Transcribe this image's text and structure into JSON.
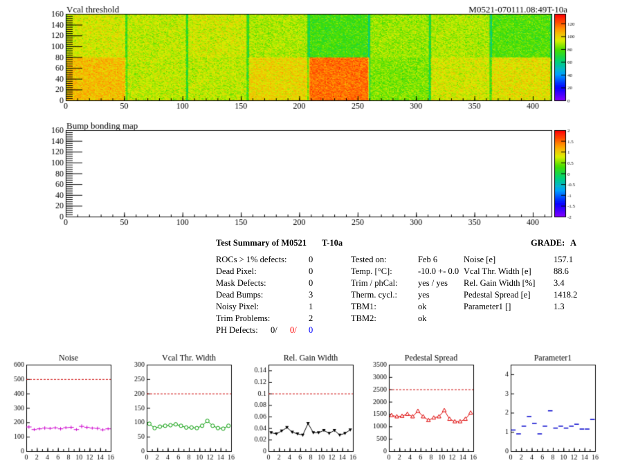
{
  "header": {
    "module_id": "M0521-070111.08:49T-10a"
  },
  "colors": {
    "noise": "#cc00cc",
    "vcal": "#009900",
    "gain": "#000000",
    "pedestal": "#dd0000",
    "param1": "#0000cc",
    "ref_line": "#cc0000",
    "ph_red": "#ff0000",
    "ph_blue": "#0000ff"
  },
  "summary": {
    "title": "Test Summary of M0521",
    "temp_tag": "T-10a",
    "grade_label": "GRADE:",
    "grade_value": "A",
    "left_rows": [
      {
        "label": "ROCs > 1% defects:",
        "value": "0"
      },
      {
        "label": "Dead Pixel:",
        "value": "0"
      },
      {
        "label": "Mask Defects:",
        "value": "0"
      },
      {
        "label": "Dead Bumps:",
        "value": "3"
      },
      {
        "label": "Noisy Pixel:",
        "value": "1"
      },
      {
        "label": "Trim Problems:",
        "value": "2"
      }
    ],
    "ph_defects": {
      "label": "PH Defects:",
      "v1": "0/",
      "v2": "0/",
      "v3": "0"
    },
    "mid_rows": [
      {
        "label": "Tested on:",
        "value": "Feb 6"
      },
      {
        "label": "Temp. [°C]:",
        "value": "-10.0 +- 0.0"
      },
      {
        "label": "Trim / phCal:",
        "value": "yes / yes"
      },
      {
        "label": "Therm. cycl.:",
        "value": "yes"
      },
      {
        "label": "TBM1:",
        "value": "ok"
      },
      {
        "label": "TBM2:",
        "value": "ok"
      }
    ],
    "right_rows": [
      {
        "label": "Noise [e]",
        "value": "157.1"
      },
      {
        "label": "Vcal Thr. Width [e]",
        "value": "88.6"
      },
      {
        "label": "Rel. Gain Width [%]",
        "value": "3.4"
      },
      {
        "label": "Pedestal Spread [e]",
        "value": "1418.2"
      },
      {
        "label": "Parameter1 []",
        "value": "1.3"
      }
    ]
  },
  "chart_data": [
    {
      "type": "heatmap",
      "title": "Vcal threshold",
      "xlim": [
        0,
        416
      ],
      "ylim": [
        0,
        160
      ],
      "xticks": [
        0,
        50,
        100,
        150,
        200,
        250,
        300,
        350,
        400
      ],
      "yticks": [
        0,
        20,
        40,
        60,
        80,
        100,
        120,
        140,
        160
      ],
      "zlim": [
        0,
        135
      ],
      "zticks": [
        0,
        20,
        40,
        60,
        80,
        100,
        120
      ],
      "roc_means": {
        "top": [
          95,
          92,
          94,
          90,
          78,
          88,
          90,
          80
        ],
        "bottom": [
          105,
          92,
          92,
          100,
          118,
          85,
          95,
          98
        ]
      }
    },
    {
      "type": "heatmap",
      "title": "Bump bonding map",
      "xlim": [
        0,
        416
      ],
      "ylim": [
        0,
        160
      ],
      "xticks": [
        0,
        50,
        100,
        150,
        200,
        250,
        300,
        350,
        400
      ],
      "yticks": [
        0,
        20,
        40,
        60,
        80,
        100,
        120,
        140,
        160
      ],
      "zlim": [
        -2,
        2
      ],
      "zticks": [
        -2,
        -1.5,
        -1,
        -0.5,
        0,
        0.5,
        1,
        1.5,
        2
      ],
      "zticklabels": [
        "-2",
        "-1.5",
        "-1",
        "-0.5",
        "0",
        "0.5",
        "1",
        "1.5",
        "2"
      ]
    },
    {
      "type": "scatter",
      "title": "Noise",
      "style": "cross",
      "x": [
        0,
        1,
        2,
        3,
        4,
        5,
        6,
        7,
        8,
        9,
        10,
        11,
        12,
        13,
        14,
        15
      ],
      "values": [
        168,
        150,
        155,
        160,
        158,
        162,
        155,
        163,
        165,
        150,
        172,
        165,
        160,
        158,
        148,
        155
      ],
      "errors": [
        12,
        10,
        10,
        12,
        10,
        10,
        12,
        10,
        12,
        10,
        14,
        12,
        10,
        12,
        10,
        10
      ],
      "xlim": [
        0,
        16
      ],
      "ylim": [
        0,
        600
      ],
      "xticks": [
        0,
        2,
        4,
        6,
        8,
        10,
        12,
        14,
        16
      ],
      "yticks": [
        0,
        100,
        200,
        300,
        400,
        500,
        600
      ],
      "ref": 500
    },
    {
      "type": "line",
      "title": "Vcal Thr. Width",
      "style": "circle",
      "x": [
        0,
        1,
        2,
        3,
        4,
        5,
        6,
        7,
        8,
        9,
        10,
        11,
        12,
        13,
        14,
        15
      ],
      "values": [
        95,
        80,
        85,
        88,
        90,
        93,
        88,
        82,
        82,
        80,
        88,
        105,
        88,
        80,
        78,
        88
      ],
      "xlim": [
        0,
        16
      ],
      "ylim": [
        0,
        300
      ],
      "xticks": [
        0,
        2,
        4,
        6,
        8,
        10,
        12,
        14,
        16
      ],
      "yticks": [
        0,
        50,
        100,
        150,
        200,
        250,
        300
      ],
      "ref": 200
    },
    {
      "type": "line",
      "title": "Rel. Gain Width",
      "style": "triangle",
      "x": [
        0,
        1,
        2,
        3,
        4,
        5,
        6,
        7,
        8,
        9,
        10,
        11,
        12,
        13,
        14,
        15
      ],
      "values": [
        0.032,
        0.03,
        0.035,
        0.041,
        0.033,
        0.03,
        0.028,
        0.048,
        0.032,
        0.032,
        0.036,
        0.031,
        0.036,
        0.028,
        0.031,
        0.037
      ],
      "xlim": [
        0,
        16
      ],
      "ylim": [
        0,
        0.15
      ],
      "xticks": [
        0,
        2,
        4,
        6,
        8,
        10,
        12,
        14,
        16
      ],
      "yticks": [
        0,
        0.02,
        0.04,
        0.06,
        0.08,
        0.1,
        0.12,
        0.14
      ],
      "yticklabels": [
        "0",
        "0.02",
        "0.04",
        "0.06",
        "0.08",
        "0.1",
        "0.12",
        "0.14"
      ],
      "ref": 0.1
    },
    {
      "type": "line",
      "title": "Pedestal Spread",
      "style": "triangle-open",
      "x": [
        0,
        1,
        2,
        3,
        4,
        5,
        6,
        7,
        8,
        9,
        10,
        11,
        12,
        13,
        14,
        15
      ],
      "values": [
        1450,
        1400,
        1420,
        1500,
        1400,
        1620,
        1400,
        1250,
        1350,
        1400,
        1650,
        1300,
        1200,
        1200,
        1300,
        1550
      ],
      "xlim": [
        0,
        16
      ],
      "ylim": [
        0,
        3500
      ],
      "xticks": [
        0,
        2,
        4,
        6,
        8,
        10,
        12,
        14,
        16
      ],
      "yticks": [
        0,
        500,
        1000,
        1500,
        2000,
        2500,
        3000,
        3500
      ],
      "ref": 2500
    },
    {
      "type": "scatter",
      "title": "Parameter1",
      "style": "hbar",
      "x": [
        0,
        1,
        2,
        3,
        4,
        5,
        6,
        7,
        8,
        9,
        10,
        11,
        12,
        13,
        14,
        15
      ],
      "values": [
        1.1,
        0.9,
        1.3,
        1.8,
        1.45,
        0.9,
        1.3,
        2.1,
        1.2,
        1.3,
        1.2,
        1.3,
        1.4,
        1.15,
        1.15,
        1.65
      ],
      "xlim": [
        0,
        16
      ],
      "ylim": [
        0,
        4.5
      ],
      "xticks": [
        0,
        2,
        4,
        6,
        8,
        10,
        12,
        14,
        16
      ],
      "yticks": [
        0,
        1,
        2,
        3,
        4
      ]
    }
  ]
}
